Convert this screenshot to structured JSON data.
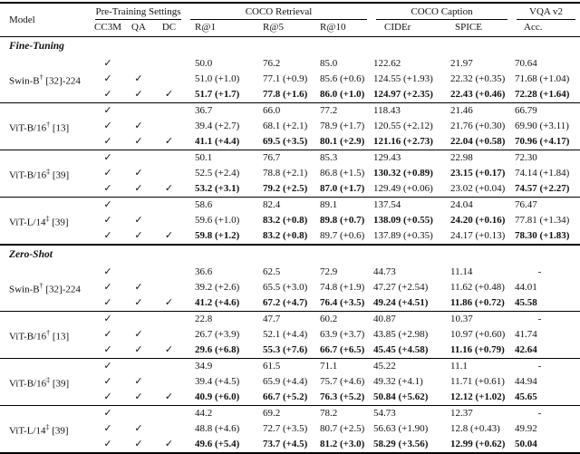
{
  "colors": {
    "background": "#ffffff",
    "text": "#111111",
    "rule": "#000000"
  },
  "table": {
    "check_glyph": "✓",
    "header": {
      "model_label": "Model",
      "group_headers": [
        {
          "label": "Pre-Training Settings",
          "span": 3
        },
        {
          "label": "COCO Retrieval",
          "span": 3
        },
        {
          "label": "COCO Caption",
          "span": 2
        },
        {
          "label": "VQA v2",
          "span": 1
        }
      ],
      "sub_headers": [
        "CC3M",
        "QA",
        "DC",
        "R@1",
        "R@5",
        "R@10",
        "CIDEr",
        "SPICE",
        "Acc."
      ]
    },
    "sections": [
      {
        "title": "Fine-Tuning",
        "groups": [
          {
            "model": {
              "name": "Swin-B",
              "sup": "†",
              "ref": "[32]-224"
            },
            "rows": [
              {
                "checks": [
                  1,
                  0,
                  0
                ],
                "vals": [
                  {
                    "t": "50.0"
                  },
                  {
                    "t": "76.2"
                  },
                  {
                    "t": "85.0"
                  },
                  {
                    "t": "122.62"
                  },
                  {
                    "t": "21.97"
                  },
                  {
                    "t": "70.64"
                  }
                ]
              },
              {
                "checks": [
                  1,
                  1,
                  0
                ],
                "vals": [
                  {
                    "t": "51.0 (+1.0)"
                  },
                  {
                    "t": "77.1 (+0.9)"
                  },
                  {
                    "t": "85.6 (+0.6)"
                  },
                  {
                    "t": "124.55 (+1.93)"
                  },
                  {
                    "t": "22.32 (+0.35)"
                  },
                  {
                    "t": "71.68 (+1.04)"
                  }
                ]
              },
              {
                "checks": [
                  1,
                  1,
                  1
                ],
                "vals": [
                  {
                    "t": "51.7 (+1.7)",
                    "b": 1
                  },
                  {
                    "t": "77.8 (+1.6)",
                    "b": 1
                  },
                  {
                    "t": "86.0 (+1.0)",
                    "b": 1
                  },
                  {
                    "t": "124.97 (+2.35)",
                    "b": 1
                  },
                  {
                    "t": "22.43 (+0.46)",
                    "b": 1
                  },
                  {
                    "t": "72.28 (+1.64)",
                    "b": 1
                  }
                ]
              }
            ]
          },
          {
            "model": {
              "name": "ViT-B/16",
              "sup": "†",
              "ref": "[13]"
            },
            "rows": [
              {
                "checks": [
                  1,
                  0,
                  0
                ],
                "vals": [
                  {
                    "t": "36.7"
                  },
                  {
                    "t": "66.0"
                  },
                  {
                    "t": "77.2"
                  },
                  {
                    "t": "118.43"
                  },
                  {
                    "t": "21.46"
                  },
                  {
                    "t": "66.79"
                  }
                ]
              },
              {
                "checks": [
                  1,
                  1,
                  0
                ],
                "vals": [
                  {
                    "t": "39.4 (+2.7)"
                  },
                  {
                    "t": "68.1 (+2.1)"
                  },
                  {
                    "t": "78.9 (+1.7)"
                  },
                  {
                    "t": "120.55 (+2.12)"
                  },
                  {
                    "t": "21.76 (+0.30)"
                  },
                  {
                    "t": "69.90 (+3.11)"
                  }
                ]
              },
              {
                "checks": [
                  1,
                  1,
                  1
                ],
                "vals": [
                  {
                    "t": "41.1 (+4.4)",
                    "b": 1
                  },
                  {
                    "t": "69.5 (+3.5)",
                    "b": 1
                  },
                  {
                    "t": "80.1 (+2.9)",
                    "b": 1
                  },
                  {
                    "t": "121.16 (+2.73)",
                    "b": 1
                  },
                  {
                    "t": "22.04 (+0.58)",
                    "b": 1
                  },
                  {
                    "t": "70.96 (+4.17)",
                    "b": 1
                  }
                ]
              }
            ]
          },
          {
            "model": {
              "name": "ViT-B/16",
              "sup": "‡",
              "ref": "[39]"
            },
            "rows": [
              {
                "checks": [
                  1,
                  0,
                  0
                ],
                "vals": [
                  {
                    "t": "50.1"
                  },
                  {
                    "t": "76.7"
                  },
                  {
                    "t": "85.3"
                  },
                  {
                    "t": "129.43"
                  },
                  {
                    "t": "22.98"
                  },
                  {
                    "t": "72.30"
                  }
                ]
              },
              {
                "checks": [
                  1,
                  1,
                  0
                ],
                "vals": [
                  {
                    "t": "52.5 (+2.4)"
                  },
                  {
                    "t": "78.8 (+2.1)"
                  },
                  {
                    "t": "86.8 (+1.5)"
                  },
                  {
                    "t": "130.32 (+0.89)",
                    "b": 1
                  },
                  {
                    "t": "23.15 (+0.17)",
                    "b": 1
                  },
                  {
                    "t": "74.14 (+1.84)"
                  }
                ]
              },
              {
                "checks": [
                  1,
                  1,
                  1
                ],
                "vals": [
                  {
                    "t": "53.2 (+3.1)",
                    "b": 1
                  },
                  {
                    "t": "79.2 (+2.5)",
                    "b": 1
                  },
                  {
                    "t": "87.0 (+1.7)",
                    "b": 1
                  },
                  {
                    "t": "129.49 (+0.06)"
                  },
                  {
                    "t": "23.02 (+0.04)"
                  },
                  {
                    "t": "74.57 (+2.27)",
                    "b": 1
                  }
                ]
              }
            ]
          },
          {
            "model": {
              "name": "ViT-L/14",
              "sup": "‡",
              "ref": "[39]"
            },
            "rows": [
              {
                "checks": [
                  1,
                  0,
                  0
                ],
                "vals": [
                  {
                    "t": "58.6"
                  },
                  {
                    "t": "82.4"
                  },
                  {
                    "t": "89.1"
                  },
                  {
                    "t": "137.54"
                  },
                  {
                    "t": "24.04"
                  },
                  {
                    "t": "76.47"
                  }
                ]
              },
              {
                "checks": [
                  1,
                  1,
                  0
                ],
                "vals": [
                  {
                    "t": "59.6 (+1.0)"
                  },
                  {
                    "t": "83.2 (+0.8)",
                    "b": 1
                  },
                  {
                    "t": "89.8 (+0.7)",
                    "b": 1
                  },
                  {
                    "t": "138.09 (+0.55)",
                    "b": 1
                  },
                  {
                    "t": "24.20 (+0.16)",
                    "b": 1
                  },
                  {
                    "t": "77.81 (+1.34)"
                  }
                ]
              },
              {
                "checks": [
                  1,
                  1,
                  1
                ],
                "vals": [
                  {
                    "t": "59.8 (+1.2)",
                    "b": 1
                  },
                  {
                    "t": "83.2 (+0.8)",
                    "b": 1
                  },
                  {
                    "t": "89.7 (+0.6)"
                  },
                  {
                    "t": "137.89 (+0.35)"
                  },
                  {
                    "t": "24.17 (+0.13)"
                  },
                  {
                    "t": "78.30 (+1.83)",
                    "b": 1
                  }
                ]
              }
            ]
          }
        ]
      },
      {
        "title": "Zero-Shot",
        "groups": [
          {
            "model": {
              "name": "Swin-B",
              "sup": "†",
              "ref": "[32]-224"
            },
            "rows": [
              {
                "checks": [
                  1,
                  0,
                  0
                ],
                "vals": [
                  {
                    "t": "36.6"
                  },
                  {
                    "t": "62.5"
                  },
                  {
                    "t": "72.9"
                  },
                  {
                    "t": "44.73"
                  },
                  {
                    "t": "11.14"
                  },
                  {
                    "t": "-"
                  }
                ]
              },
              {
                "checks": [
                  1,
                  1,
                  0
                ],
                "vals": [
                  {
                    "t": "39.2 (+2.6)"
                  },
                  {
                    "t": "65.5 (+3.0)"
                  },
                  {
                    "t": "74.8 (+1.9)"
                  },
                  {
                    "t": "47.27 (+2.54)"
                  },
                  {
                    "t": "11.62 (+0.48)"
                  },
                  {
                    "t": "44.01"
                  }
                ]
              },
              {
                "checks": [
                  1,
                  1,
                  1
                ],
                "vals": [
                  {
                    "t": "41.2 (+4.6)",
                    "b": 1
                  },
                  {
                    "t": "67.2 (+4.7)",
                    "b": 1
                  },
                  {
                    "t": "76.4 (+3.5)",
                    "b": 1
                  },
                  {
                    "t": "49.24 (+4.51)",
                    "b": 1
                  },
                  {
                    "t": "11.86 (+0.72)",
                    "b": 1
                  },
                  {
                    "t": "45.58",
                    "b": 1
                  }
                ]
              }
            ]
          },
          {
            "model": {
              "name": "ViT-B/16",
              "sup": "†",
              "ref": "[13]"
            },
            "rows": [
              {
                "checks": [
                  1,
                  0,
                  0
                ],
                "vals": [
                  {
                    "t": "22.8"
                  },
                  {
                    "t": "47.7"
                  },
                  {
                    "t": "60.2"
                  },
                  {
                    "t": "40.87"
                  },
                  {
                    "t": "10.37"
                  },
                  {
                    "t": "-"
                  }
                ]
              },
              {
                "checks": [
                  1,
                  1,
                  0
                ],
                "vals": [
                  {
                    "t": "26.7 (+3.9)"
                  },
                  {
                    "t": "52.1 (+4.4)"
                  },
                  {
                    "t": "63.9 (+3.7)"
                  },
                  {
                    "t": "43.85 (+2.98)"
                  },
                  {
                    "t": "10.97 (+0.60)"
                  },
                  {
                    "t": "41.74"
                  }
                ]
              },
              {
                "checks": [
                  1,
                  1,
                  1
                ],
                "vals": [
                  {
                    "t": "29.6 (+6.8)",
                    "b": 1
                  },
                  {
                    "t": "55.3 (+7.6)",
                    "b": 1
                  },
                  {
                    "t": "66.7 (+6.5)",
                    "b": 1
                  },
                  {
                    "t": "45.45 (+4.58)",
                    "b": 1
                  },
                  {
                    "t": "11.16 (+0.79)",
                    "b": 1
                  },
                  {
                    "t": "42.64",
                    "b": 1
                  }
                ]
              }
            ]
          },
          {
            "model": {
              "name": "ViT-B/16",
              "sup": "‡",
              "ref": "[39]"
            },
            "rows": [
              {
                "checks": [
                  1,
                  0,
                  0
                ],
                "vals": [
                  {
                    "t": "34.9"
                  },
                  {
                    "t": "61.5"
                  },
                  {
                    "t": "71.1"
                  },
                  {
                    "t": "45.22"
                  },
                  {
                    "t": "11.1"
                  },
                  {
                    "t": "-"
                  }
                ]
              },
              {
                "checks": [
                  1,
                  1,
                  0
                ],
                "vals": [
                  {
                    "t": "39.4 (+4.5)"
                  },
                  {
                    "t": "65.9 (+4.4)"
                  },
                  {
                    "t": "75.7 (+4.6)"
                  },
                  {
                    "t": "49.32 (+4.1)"
                  },
                  {
                    "t": "11.71 (+0.61)"
                  },
                  {
                    "t": "44.94"
                  }
                ]
              },
              {
                "checks": [
                  1,
                  1,
                  1
                ],
                "vals": [
                  {
                    "t": "40.9 (+6.0)",
                    "b": 1
                  },
                  {
                    "t": "66.7 (+5.2)",
                    "b": 1
                  },
                  {
                    "t": "76.3 (+5.2)",
                    "b": 1
                  },
                  {
                    "t": "50.84 (+5.62)",
                    "b": 1
                  },
                  {
                    "t": "12.12 (+1.02)",
                    "b": 1
                  },
                  {
                    "t": "45.65",
                    "b": 1
                  }
                ]
              }
            ]
          },
          {
            "model": {
              "name": "ViT-L/14",
              "sup": "‡",
              "ref": "[39]"
            },
            "rows": [
              {
                "checks": [
                  1,
                  0,
                  0
                ],
                "vals": [
                  {
                    "t": "44.2"
                  },
                  {
                    "t": "69.2"
                  },
                  {
                    "t": "78.2"
                  },
                  {
                    "t": "54.73"
                  },
                  {
                    "t": "12.37"
                  },
                  {
                    "t": "-"
                  }
                ]
              },
              {
                "checks": [
                  1,
                  1,
                  0
                ],
                "vals": [
                  {
                    "t": "48.8 (+4.6)"
                  },
                  {
                    "t": "72.7 (+3.5)"
                  },
                  {
                    "t": "80.7 (+2.5)"
                  },
                  {
                    "t": "56.63 (+1.90)"
                  },
                  {
                    "t": "12.8 (+0.43)"
                  },
                  {
                    "t": "49.92"
                  }
                ]
              },
              {
                "checks": [
                  1,
                  1,
                  1
                ],
                "vals": [
                  {
                    "t": "49.6 (+5.4)",
                    "b": 1
                  },
                  {
                    "t": "73.7 (+4.5)",
                    "b": 1
                  },
                  {
                    "t": "81.2 (+3.0)",
                    "b": 1
                  },
                  {
                    "t": "58.29 (+3.56)",
                    "b": 1
                  },
                  {
                    "t": "12.99 (+0.62)",
                    "b": 1
                  },
                  {
                    "t": "50.04",
                    "b": 1
                  }
                ]
              }
            ]
          }
        ]
      }
    ]
  }
}
